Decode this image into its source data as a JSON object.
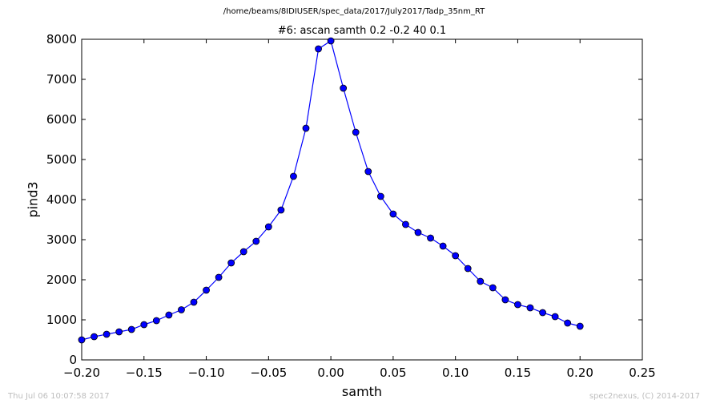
{
  "chart_data": {
    "type": "line",
    "suptitle": "/home/beams/8IDIUSER/spec_data/2017/July2017/Tadp_35nm_RT",
    "title": "#6: ascan  samth 0.2 -0.2  40 0.1",
    "xlabel": "samth",
    "ylabel": "pind3",
    "xlim": [
      -0.2,
      0.25
    ],
    "ylim": [
      0,
      8000
    ],
    "x_ticks": [
      -0.2,
      -0.15,
      -0.1,
      -0.05,
      0.0,
      0.05,
      0.1,
      0.15,
      0.2,
      0.25
    ],
    "x_tick_labels": [
      "−0.20",
      "−0.15",
      "−0.10",
      "−0.05",
      "0.00",
      "0.05",
      "0.10",
      "0.15",
      "0.20",
      "0.25"
    ],
    "y_ticks": [
      0,
      1000,
      2000,
      3000,
      4000,
      5000,
      6000,
      7000,
      8000
    ],
    "y_tick_labels": [
      "0",
      "1000",
      "2000",
      "3000",
      "4000",
      "5000",
      "6000",
      "7000",
      "8000"
    ],
    "grid": false,
    "series": [
      {
        "color": "#0000ff",
        "marker": "circle",
        "x": [
          -0.2,
          -0.19,
          -0.18,
          -0.17,
          -0.16,
          -0.15,
          -0.14,
          -0.13,
          -0.12,
          -0.11,
          -0.1,
          -0.09,
          -0.08,
          -0.07,
          -0.06,
          -0.05,
          -0.04,
          -0.03,
          -0.02,
          -0.01,
          0.0,
          0.01,
          0.02,
          0.03,
          0.04,
          0.05,
          0.06,
          0.07,
          0.08,
          0.09,
          0.1,
          0.11,
          0.12,
          0.13,
          0.14,
          0.15,
          0.16,
          0.17,
          0.18,
          0.19,
          0.2
        ],
        "y": [
          500,
          580,
          640,
          700,
          760,
          880,
          980,
          1120,
          1250,
          1440,
          1740,
          2060,
          2420,
          2700,
          2960,
          3320,
          3740,
          4580,
          5780,
          7760,
          7960,
          6780,
          5680,
          4700,
          4080,
          3640,
          3380,
          3180,
          3040,
          2840,
          2600,
          2280,
          1960,
          1800,
          1500,
          1380,
          1300,
          1180,
          1080,
          920,
          840
        ]
      }
    ]
  },
  "footer": {
    "left": "Thu Jul 06 10:07:58 2017",
    "right": "spec2nexus, (C) 2014-2017"
  }
}
